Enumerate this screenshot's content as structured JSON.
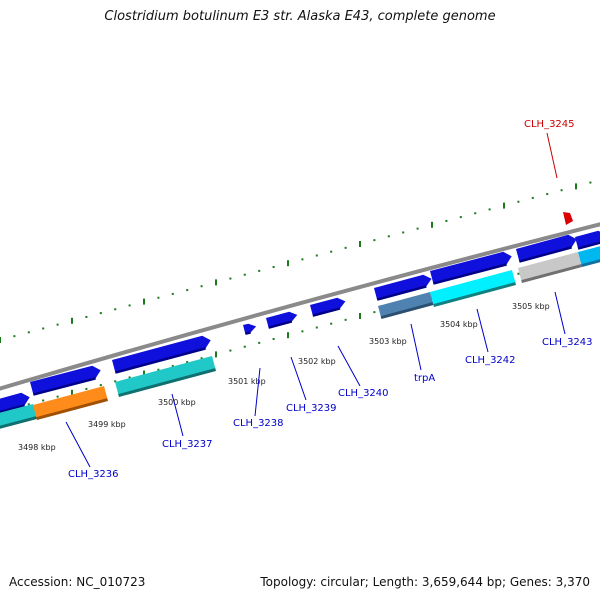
{
  "title": "Clostridium botulinum E3 str. Alaska E43, complete genome",
  "footer": {
    "accession": "Accession: NC_010723",
    "summary": "Topology: circular; Length: 3,659,644 bp; Genes: 3,370"
  },
  "kbp_ticks": [
    "3498 kbp",
    "3499 kbp",
    "3500 kbp",
    "3501 kbp",
    "3502 kbp",
    "3503 kbp",
    "3504 kbp",
    "3505 kbp"
  ],
  "gene_labels": [
    "CLH_3236",
    "CLH_3237",
    "CLH_3238",
    "CLH_3239",
    "CLH_3240",
    "trpA",
    "CLH_3242",
    "CLH_3243",
    "CLH_3245"
  ],
  "colors": {
    "gene_blue": "#1010dd",
    "cds_cyan": "#20c8c8",
    "cds_orange": "#ff8c1a",
    "cds_steel": "#4f82b0",
    "cds_gray": "#c8c8c8",
    "feature_red": "#dd0000",
    "tick_green": "#1a7a1a",
    "backbone": "#8a8a8a",
    "label_blue": "#0000cc",
    "label_red": "#cc0000"
  }
}
